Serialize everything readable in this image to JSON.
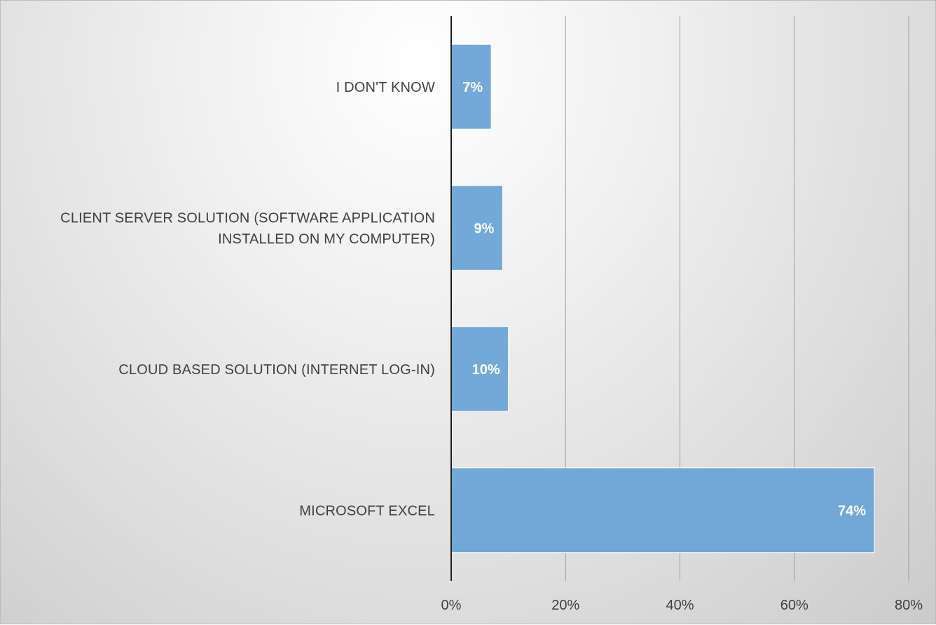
{
  "chart_data": {
    "type": "bar",
    "orientation": "horizontal",
    "categories": [
      [
        "MICROSOFT EXCEL"
      ],
      [
        "CLOUD BASED SOLUTION (INTERNET LOG-IN)"
      ],
      [
        "CLIENT SERVER SOLUTION (SOFTWARE APPLICATION",
        "INSTALLED ON MY COMPUTER)"
      ],
      [
        "I DON'T KNOW"
      ]
    ],
    "values": [
      74,
      10,
      9,
      7
    ],
    "data_labels": [
      "74%",
      "10%",
      "9%",
      "7%"
    ],
    "x_ticks": [
      0,
      20,
      40,
      60,
      80
    ],
    "x_tick_labels": [
      "0%",
      "20%",
      "40%",
      "60%",
      "80%"
    ],
    "xlim": [
      0,
      80
    ],
    "grid": "vertical",
    "legend": "none",
    "colors": {
      "bar": "#6ea6d8",
      "bar_edge": "#ffffff",
      "grid": "#9e9e9e",
      "axis": "#1f1f1f",
      "label_text": "#404040",
      "data_label_text": "#ffffff"
    }
  }
}
